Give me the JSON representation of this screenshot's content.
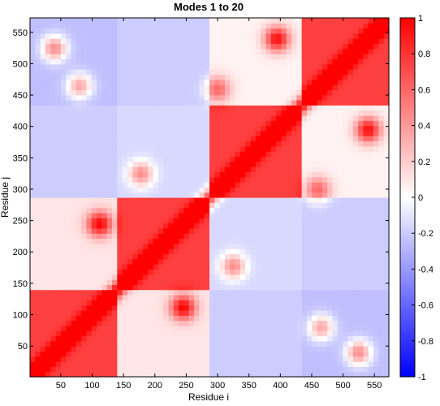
{
  "chart_data": {
    "type": "heatmap",
    "title": "Modes 1 to 20",
    "xlabel": "Residue i",
    "ylabel": "Residue j",
    "xlim": [
      1,
      573
    ],
    "ylim": [
      1,
      573
    ],
    "x_ticks": [
      50,
      100,
      150,
      200,
      250,
      300,
      350,
      400,
      450,
      500,
      550
    ],
    "y_ticks": [
      50,
      100,
      150,
      200,
      250,
      300,
      350,
      400,
      450,
      500,
      550
    ],
    "colorbar": {
      "range": [
        -1,
        1
      ],
      "ticks": [
        -1,
        -0.8,
        -0.6,
        -0.4,
        -0.2,
        0,
        0.2,
        0.4,
        0.6,
        0.8,
        1
      ],
      "tick_labels": [
        "-1",
        "-0.8",
        "-0.6",
        "-0.4",
        "-0.2",
        "0",
        "0.2",
        "0.4",
        "0.6",
        "0.8",
        "1"
      ],
      "low_color": "#0000ff",
      "mid_color": "#ffffff",
      "high_color": "#ff0000"
    },
    "domain_boundaries": [
      1,
      143,
      287,
      430,
      573
    ],
    "block_values": [
      [
        0.75,
        0.1,
        -0.2,
        -0.25
      ],
      [
        0.1,
        0.75,
        -0.15,
        -0.2
      ],
      [
        -0.2,
        -0.15,
        0.75,
        0.05
      ],
      [
        -0.25,
        -0.2,
        0.05,
        0.75
      ]
    ],
    "hotspots": [
      {
        "x": 245,
        "y": 112,
        "value": 0.9
      },
      {
        "x": 112,
        "y": 245,
        "value": 0.9
      },
      {
        "x": 395,
        "y": 540,
        "value": 0.9
      },
      {
        "x": 540,
        "y": 395,
        "value": 0.9
      },
      {
        "x": 525,
        "y": 40,
        "value": 0.7
      },
      {
        "x": 40,
        "y": 525,
        "value": 0.7
      },
      {
        "x": 325,
        "y": 178,
        "value": 0.6
      },
      {
        "x": 178,
        "y": 325,
        "value": 0.6
      },
      {
        "x": 465,
        "y": 80,
        "value": 0.6
      },
      {
        "x": 80,
        "y": 465,
        "value": 0.6
      },
      {
        "x": 460,
        "y": 300,
        "value": 0.55
      },
      {
        "x": 300,
        "y": 460,
        "value": 0.55
      }
    ]
  }
}
